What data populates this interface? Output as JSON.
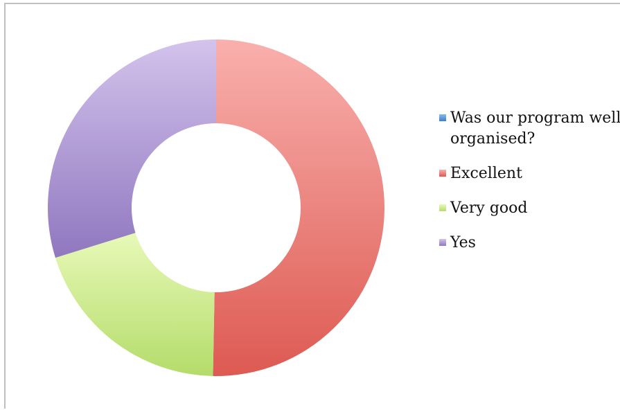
{
  "chart_data": {
    "type": "pie",
    "variant": "donut",
    "title": "",
    "legend_position": "right",
    "categories": [
      "Was our program well organised?",
      "Excellent",
      "Very good",
      "Yes"
    ],
    "values": [
      0,
      50.3,
      19.9,
      29.8
    ],
    "colors": [
      "#4a90d9",
      "#e8706c",
      "#c9e987",
      "#b49ad4"
    ],
    "gradients": [
      [
        "#8bbbe8",
        "#3c7fc8"
      ],
      [
        "#f9b0ad",
        "#dd5a52"
      ],
      [
        "#e8f9b8",
        "#b4dc6a"
      ],
      [
        "#d3c3ec",
        "#9077bf"
      ]
    ]
  }
}
